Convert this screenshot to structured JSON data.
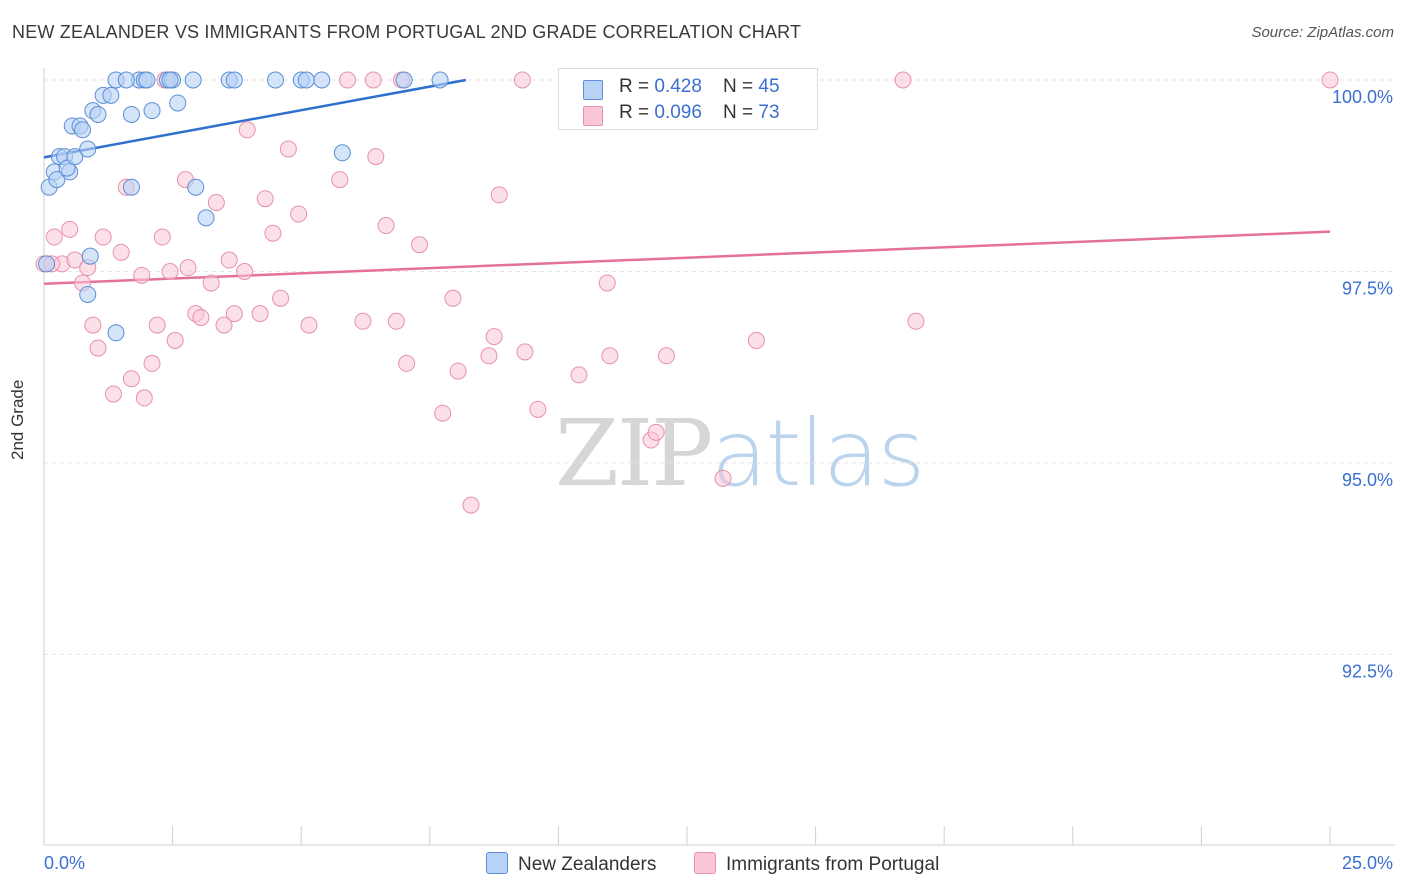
{
  "header": {
    "title": "NEW ZEALANDER VS IMMIGRANTS FROM PORTUGAL 2ND GRADE CORRELATION CHART",
    "source": "Source: ZipAtlas.com"
  },
  "watermark": {
    "zip": "ZIP",
    "atlas": "atlas"
  },
  "colors": {
    "blue_fill": "#b8d2f5",
    "blue_stroke": "#5b8fd6",
    "blue_line": "#2e6fd0",
    "pink_fill": "#f9c7d6",
    "pink_stroke": "#e791ad",
    "pink_line": "#e3719a",
    "tick_text": "#3b6fd1",
    "grid": "#e4e4e4"
  },
  "legend": {
    "rows": [
      {
        "r_label": "R = ",
        "r_value": "0.428",
        "n_label": "N = ",
        "n_value": "45"
      },
      {
        "r_label": "R = ",
        "r_value": "0.096",
        "n_label": "N = ",
        "n_value": "73"
      }
    ]
  },
  "bottom_legend": {
    "series_a": "New Zealanders",
    "series_b": "Immigrants from Portugal"
  },
  "chart_data": {
    "type": "scatter",
    "title": "NEW ZEALANDER VS IMMIGRANTS FROM PORTUGAL 2ND GRADE CORRELATION CHART",
    "xlabel": "",
    "ylabel": "2nd Grade",
    "xlim": [
      0.0,
      25.0
    ],
    "ylim": [
      90.0,
      100.25
    ],
    "x_tick_labels": [
      "0.0%",
      "25.0%"
    ],
    "y_ticks": [
      100.0,
      97.5,
      95.0,
      92.5
    ],
    "y_tick_labels": [
      "100.0%",
      "97.5%",
      "95.0%",
      "92.5%"
    ],
    "grid": true,
    "legend_position": "top-center",
    "series": [
      {
        "name": "New Zealanders",
        "R": 0.428,
        "N": 45,
        "trend": {
          "x": [
            0.0,
            8.2
          ],
          "y": [
            98.99,
            100.0
          ]
        },
        "points": [
          [
            0.1,
            98.6
          ],
          [
            0.2,
            98.8
          ],
          [
            0.25,
            98.7
          ],
          [
            0.3,
            99.0
          ],
          [
            0.4,
            99.0
          ],
          [
            0.5,
            98.8
          ],
          [
            0.45,
            98.85
          ],
          [
            0.55,
            99.4
          ],
          [
            0.6,
            99.0
          ],
          [
            0.7,
            99.4
          ],
          [
            0.75,
            99.35
          ],
          [
            0.85,
            99.1
          ],
          [
            0.95,
            99.6
          ],
          [
            1.05,
            99.55
          ],
          [
            1.15,
            99.8
          ],
          [
            1.3,
            99.8
          ],
          [
            1.4,
            100.0
          ],
          [
            1.7,
            99.55
          ],
          [
            1.85,
            100.0
          ],
          [
            1.95,
            100.0
          ],
          [
            2.0,
            100.0
          ],
          [
            2.1,
            99.6
          ],
          [
            2.4,
            100.0
          ],
          [
            2.5,
            100.0
          ],
          [
            2.6,
            99.7
          ],
          [
            2.9,
            100.0
          ],
          [
            3.6,
            100.0
          ],
          [
            3.7,
            100.0
          ],
          [
            4.5,
            100.0
          ],
          [
            5.0,
            100.0
          ],
          [
            5.1,
            100.0
          ],
          [
            5.4,
            100.0
          ],
          [
            5.8,
            99.05
          ],
          [
            7.0,
            100.0
          ],
          [
            7.7,
            100.0
          ],
          [
            0.9,
            97.7
          ],
          [
            0.85,
            97.2
          ],
          [
            1.4,
            96.7
          ],
          [
            1.7,
            98.6
          ],
          [
            2.95,
            98.6
          ],
          [
            3.15,
            98.2
          ],
          [
            0.05,
            97.6
          ],
          [
            12.5,
            100.0
          ],
          [
            1.6,
            100.0
          ],
          [
            2.45,
            100.0
          ]
        ]
      },
      {
        "name": "Immigrants from Portugal",
        "R": 0.096,
        "N": 73,
        "trend": {
          "x": [
            0.0,
            25.0
          ],
          "y": [
            97.34,
            98.02
          ]
        },
        "points": [
          [
            0.0,
            97.6
          ],
          [
            0.2,
            97.95
          ],
          [
            0.35,
            97.6
          ],
          [
            0.5,
            98.05
          ],
          [
            0.6,
            97.65
          ],
          [
            0.75,
            97.35
          ],
          [
            0.85,
            97.55
          ],
          [
            0.95,
            96.8
          ],
          [
            1.05,
            96.5
          ],
          [
            1.15,
            97.95
          ],
          [
            1.35,
            95.9
          ],
          [
            1.5,
            97.75
          ],
          [
            1.6,
            98.6
          ],
          [
            1.7,
            96.1
          ],
          [
            1.9,
            97.45
          ],
          [
            1.95,
            95.85
          ],
          [
            2.1,
            96.3
          ],
          [
            2.2,
            96.8
          ],
          [
            2.3,
            97.95
          ],
          [
            2.45,
            97.5
          ],
          [
            2.55,
            96.6
          ],
          [
            2.75,
            98.7
          ],
          [
            2.8,
            97.55
          ],
          [
            2.95,
            96.95
          ],
          [
            3.05,
            96.9
          ],
          [
            3.25,
            97.35
          ],
          [
            3.35,
            98.4
          ],
          [
            3.5,
            96.8
          ],
          [
            3.6,
            97.65
          ],
          [
            3.7,
            96.95
          ],
          [
            3.9,
            97.5
          ],
          [
            3.95,
            99.35
          ],
          [
            4.2,
            96.95
          ],
          [
            4.3,
            98.45
          ],
          [
            4.45,
            98.0
          ],
          [
            4.6,
            97.15
          ],
          [
            4.75,
            99.1
          ],
          [
            4.95,
            98.25
          ],
          [
            5.15,
            96.8
          ],
          [
            5.75,
            98.7
          ],
          [
            5.9,
            100.0
          ],
          [
            6.2,
            96.85
          ],
          [
            6.4,
            100.0
          ],
          [
            6.45,
            99.0
          ],
          [
            6.65,
            98.1
          ],
          [
            6.85,
            96.85
          ],
          [
            6.95,
            100.0
          ],
          [
            7.05,
            96.3
          ],
          [
            7.3,
            97.85
          ],
          [
            7.75,
            95.65
          ],
          [
            7.95,
            97.15
          ],
          [
            8.05,
            96.2
          ],
          [
            8.3,
            94.45
          ],
          [
            8.65,
            96.4
          ],
          [
            8.75,
            96.65
          ],
          [
            8.85,
            98.5
          ],
          [
            9.3,
            100.0
          ],
          [
            9.35,
            96.45
          ],
          [
            9.6,
            95.7
          ],
          [
            10.4,
            96.15
          ],
          [
            10.95,
            97.35
          ],
          [
            11.0,
            96.4
          ],
          [
            11.8,
            95.3
          ],
          [
            11.9,
            95.4
          ],
          [
            12.1,
            96.4
          ],
          [
            13.2,
            94.8
          ],
          [
            13.8,
            100.0
          ],
          [
            13.85,
            96.6
          ],
          [
            16.7,
            100.0
          ],
          [
            16.95,
            96.85
          ],
          [
            25.0,
            100.0
          ],
          [
            0.15,
            97.6
          ],
          [
            2.35,
            100.0
          ]
        ]
      }
    ]
  }
}
